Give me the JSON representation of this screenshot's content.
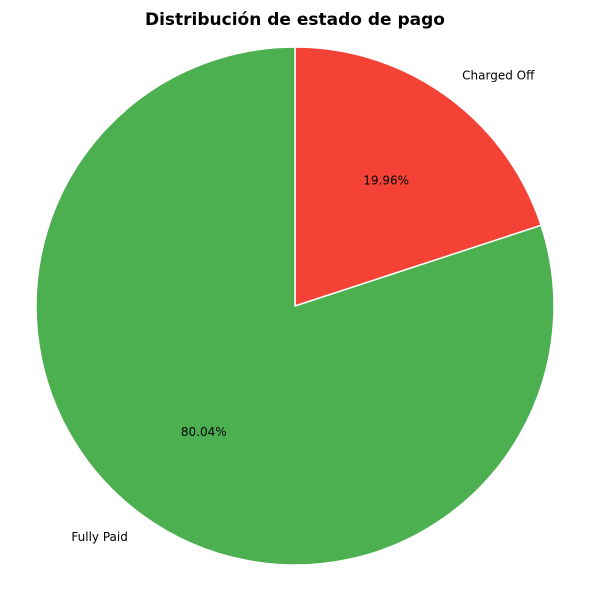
{
  "chart_data": {
    "type": "pie",
    "title": "Distribución de estado de pago",
    "slices": [
      {
        "label": "Charged Off",
        "value": 19.96,
        "pct_label": "19.96%",
        "color": "#f44336"
      },
      {
        "label": "Fully Paid",
        "value": 80.04,
        "pct_label": "80.04%",
        "color": "#4caf50"
      }
    ],
    "start_angle_deg": 90,
    "direction": "clockwise",
    "edge_color": "#ffffff",
    "legend": "none"
  }
}
